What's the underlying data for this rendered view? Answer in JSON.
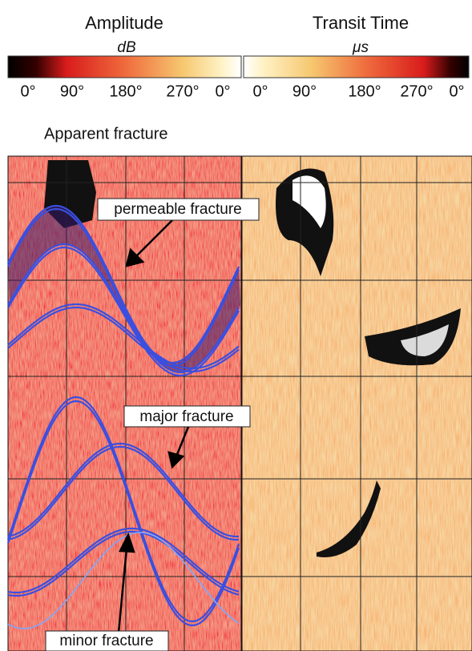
{
  "header": {
    "amplitude": {
      "title": "Amplitude",
      "unit": "dB",
      "scale": [
        "0°",
        "90°",
        "180°",
        "270°",
        "0°"
      ]
    },
    "transit_time": {
      "title": "Transit Time",
      "unit": "μs",
      "scale": [
        "0°",
        "90°",
        "180°",
        "270°",
        "0°"
      ]
    }
  },
  "section_title": "Apparent fracture",
  "annotations": [
    "permeable fracture",
    "major fracture",
    "minor fracture"
  ]
}
